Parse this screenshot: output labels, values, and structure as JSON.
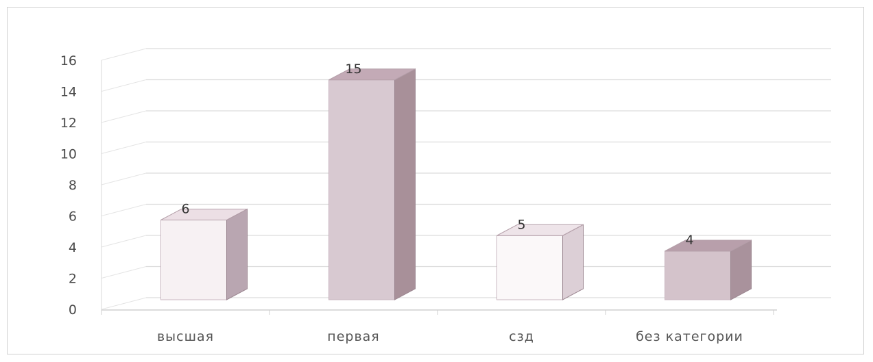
{
  "chart_data": {
    "type": "bar",
    "categories": [
      "высшая",
      "первая",
      "сзд",
      "без категории"
    ],
    "values": [
      6,
      15,
      5,
      4
    ],
    "data_labels": [
      "6",
      "15",
      "5",
      "4"
    ],
    "ylim": [
      0,
      16
    ],
    "yticks": [
      "0",
      "2",
      "4",
      "6",
      "8",
      "10",
      "12",
      "14",
      "16"
    ],
    "grid": true,
    "legend": "none",
    "colors": {
      "front": [
        "#f7f1f3",
        "#d8c9d1",
        "#fbf8f9",
        "#d4c3cb"
      ],
      "side": [
        "#b9a6b1",
        "#a89099",
        "#dccfd6",
        "#a9929c"
      ],
      "top": [
        "#ecdfe5",
        "#c3aab6",
        "#eee4e9",
        "#b89fab"
      ]
    }
  }
}
